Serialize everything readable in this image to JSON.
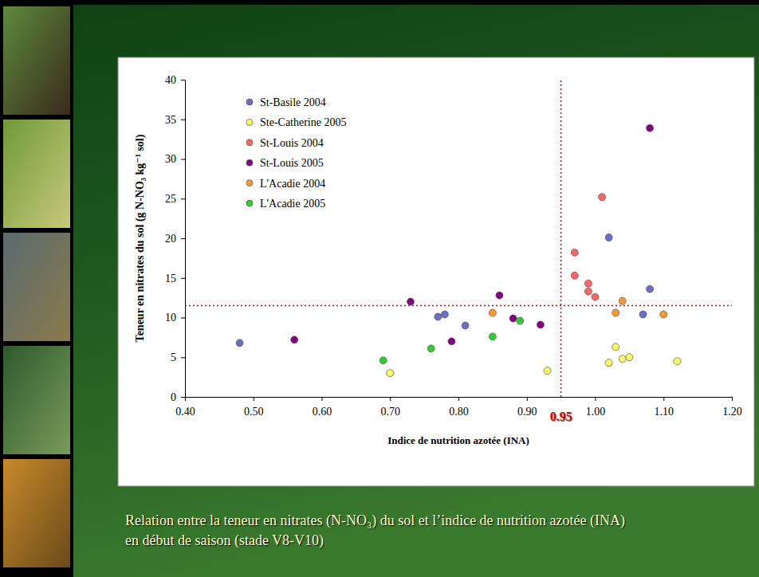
{
  "chart_data": {
    "type": "scatter",
    "x_label": "Indice de nutrition azotée (INA)",
    "y_label": "Teneur en nitrates du sol (g N-NO₃ kg⁻¹ sol)",
    "caption": "Relation entre la teneur en nitrates (N-NO₃) du sol et l’indice de nutrition azotée (INA) en début de saison (stade V8-V10)",
    "xlim": [
      0.4,
      1.2
    ],
    "xticks": [
      {
        "value": 0.4,
        "label": "0.40"
      },
      {
        "value": 0.5,
        "label": "0.50"
      },
      {
        "value": 0.6,
        "label": "0.60"
      },
      {
        "value": 0.7,
        "label": "0.70"
      },
      {
        "value": 0.8,
        "label": "0.80"
      },
      {
        "value": 0.9,
        "label": "0.90"
      },
      {
        "value": 1.0,
        "label": "1.00"
      },
      {
        "value": 1.1,
        "label": "1.10"
      },
      {
        "value": 1.2,
        "label": "1.20"
      }
    ],
    "ylim": [
      0,
      40
    ],
    "yticks": [
      0,
      5,
      10,
      15,
      20,
      25,
      30,
      35,
      40
    ],
    "grid": false,
    "legend": "upper left",
    "marker": "circle",
    "reference_lines": [
      {
        "axis": "x",
        "value": 0.95,
        "label": "0.95",
        "color": "#cc0000",
        "line_style": "dotted"
      },
      {
        "axis": "y",
        "value": 11.5,
        "color": "#cc0000",
        "line_style": "dotted"
      }
    ],
    "series": [
      {
        "name": "St-Basile 2004",
        "color": "#6a6fc4",
        "x": [
          0.48,
          0.77,
          0.78,
          0.81,
          1.02,
          1.07,
          1.08
        ],
        "values": [
          6.8,
          10.1,
          10.4,
          9.0,
          20.1,
          10.4,
          13.6
        ]
      },
      {
        "name": "Ste-Catherine 2005",
        "color": "#ffff66",
        "x": [
          0.7,
          0.93,
          1.02,
          1.03,
          1.04,
          1.05,
          1.12
        ],
        "values": [
          3.0,
          3.3,
          4.3,
          6.3,
          4.8,
          5.0,
          4.5
        ]
      },
      {
        "name": "St-Louis 2004",
        "color": "#ff6666",
        "x": [
          0.97,
          0.97,
          0.99,
          0.99,
          1.0,
          1.01
        ],
        "values": [
          18.2,
          15.3,
          14.3,
          13.3,
          12.6,
          25.2
        ]
      },
      {
        "name": "St-Louis 2005",
        "color": "#800080",
        "x": [
          0.56,
          0.73,
          0.79,
          0.86,
          0.88,
          0.92,
          1.08
        ],
        "values": [
          7.2,
          12.0,
          7.0,
          12.8,
          9.9,
          9.1,
          33.9
        ]
      },
      {
        "name": "L'Acadie 2004",
        "color": "#ff9933",
        "x": [
          0.85,
          1.03,
          1.04,
          1.1
        ],
        "values": [
          10.6,
          10.6,
          12.1,
          10.4
        ]
      },
      {
        "name": "L'Acadie 2005",
        "color": "#33cc33",
        "x": [
          0.69,
          0.76,
          0.85,
          0.89
        ],
        "values": [
          4.6,
          6.1,
          7.6,
          9.6
        ]
      }
    ]
  }
}
